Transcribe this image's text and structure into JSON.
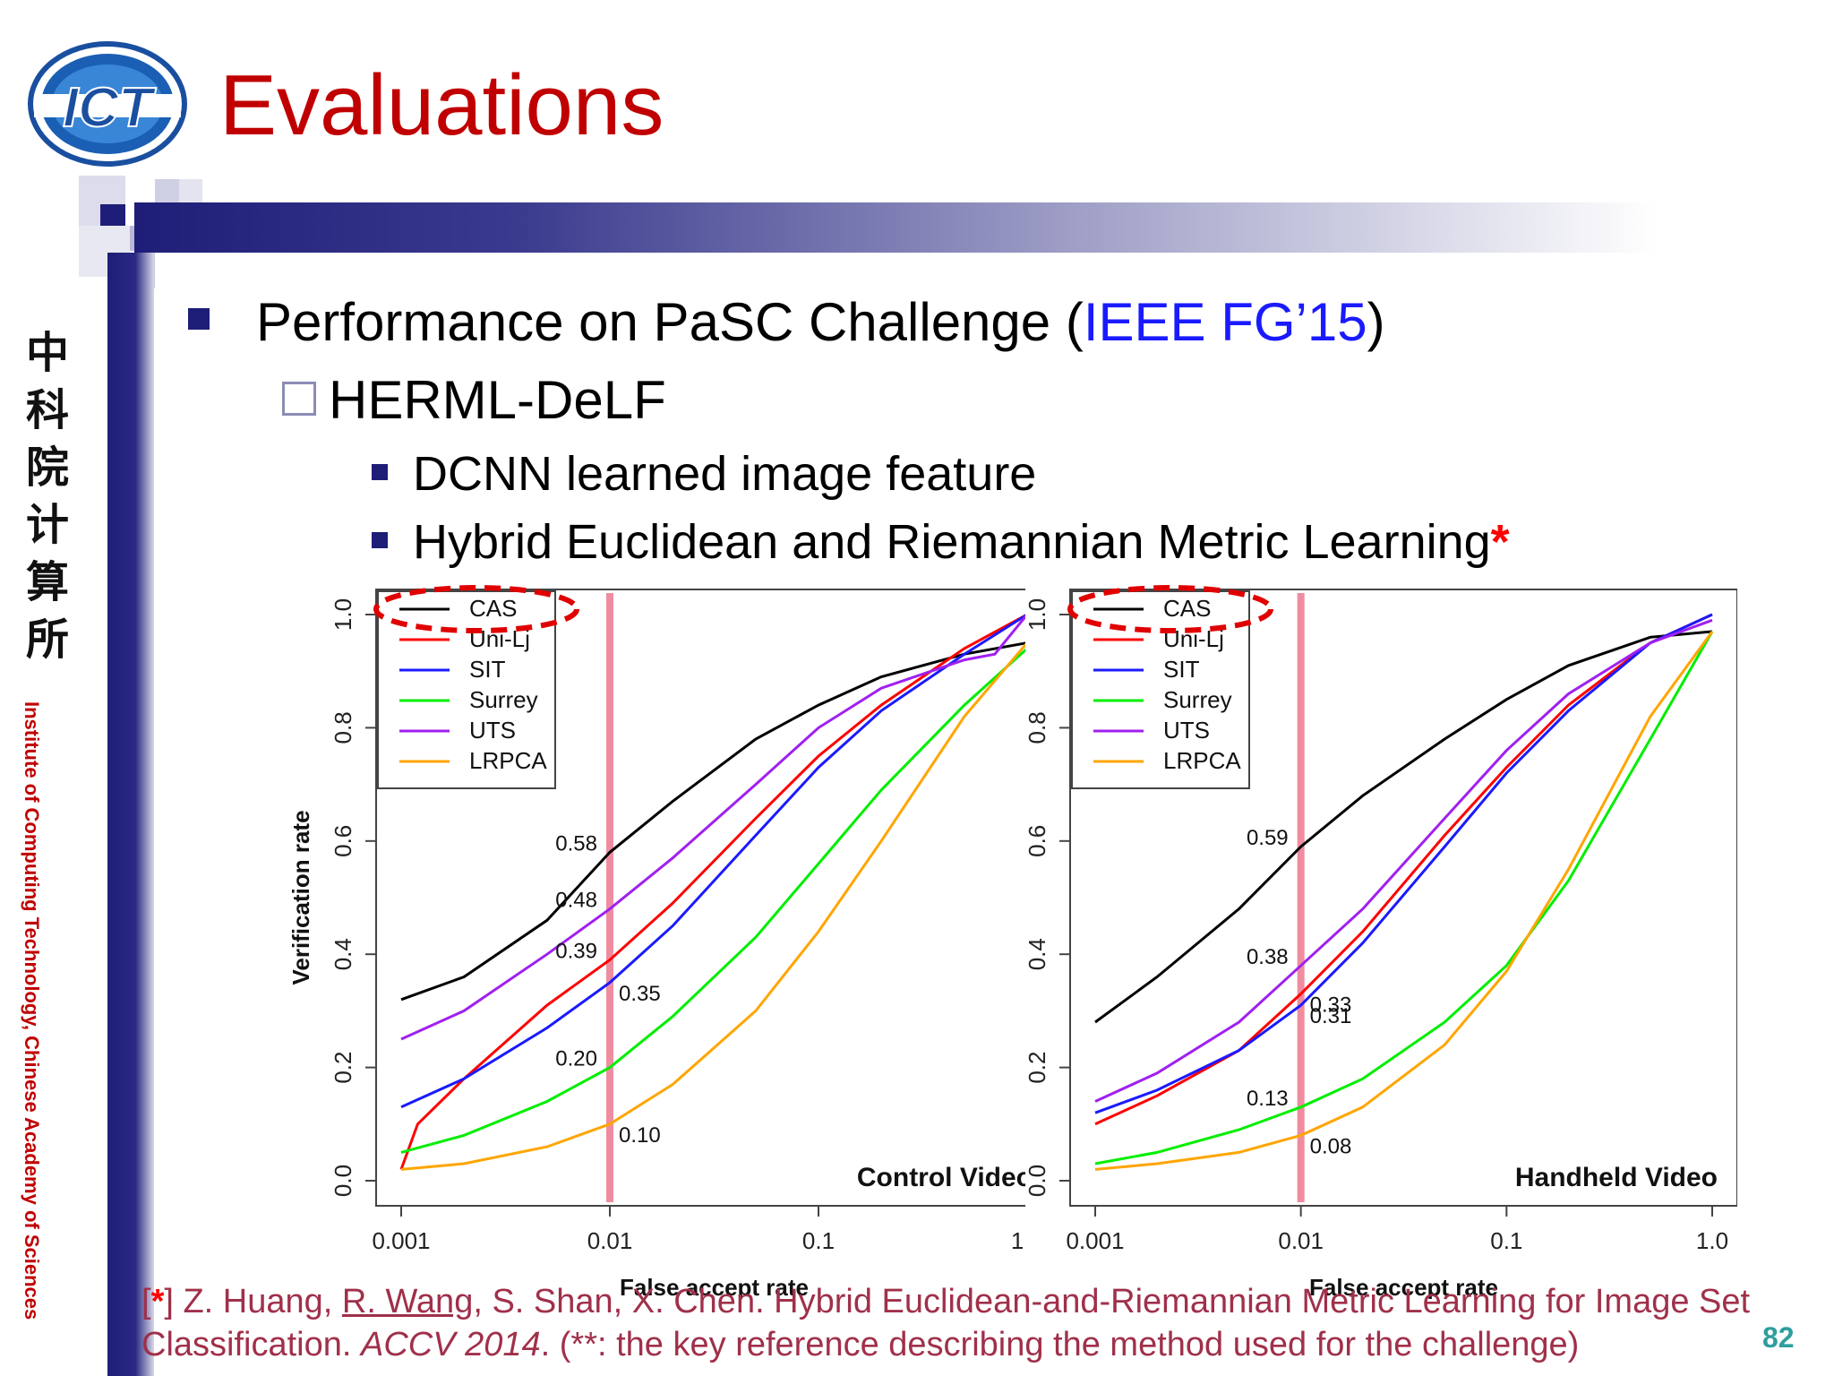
{
  "slide": {
    "title": "Evaluations",
    "logo_text": "ICT",
    "side_text": "Institute of Computing Technology, Chinese Academy of Sciences",
    "side_cjk": "中科院计算所",
    "bullet1_prefix": "Performance on PaSC Challenge (",
    "bullet1_link": "IEEE FG’15",
    "bullet1_suffix": ")",
    "bullet2": "HERML-DeLF",
    "bullet3a": "DCNN learned image feature",
    "bullet3b": "Hybrid Euclidean and Riemannian Metric Learning",
    "bullet3b_star": "*",
    "footer": {
      "star": "*",
      "a": "] Z. Huang, ",
      "author_u": "R. Wang",
      "b": ", S. Shan, X. Chen. Hybrid Euclidean-and-Riemannian Metric Learning for Image Set Classification. ",
      "venue": "ACCV 2014",
      "c": ". (**: the key reference describing the method used for the challenge)"
    },
    "page_number": "82",
    "colors": {
      "title": "#c00000",
      "link": "#1a1aff",
      "footer": "#a0304a",
      "page": "#2e9e9e"
    }
  },
  "chart_data": [
    {
      "type": "line",
      "title": "Control Video",
      "xlabel": "False accept rate",
      "ylabel": "Verification rate",
      "xscale": "log",
      "xlim": [
        0.001,
        1.0
      ],
      "ylim": [
        0.0,
        1.0
      ],
      "xticks": [
        "0.001",
        "0.01",
        "0.1",
        "1.0"
      ],
      "yticks": [
        "0.0",
        "0.2",
        "0.4",
        "0.6",
        "0.8",
        "1.0"
      ],
      "legend_position": "top-left",
      "reference_line_x": 0.01,
      "series": [
        {
          "name": "CAS",
          "color": "#000000",
          "x": [
            0.001,
            0.002,
            0.005,
            0.01,
            0.02,
            0.05,
            0.1,
            0.2,
            0.5,
            1.0
          ],
          "y": [
            0.32,
            0.36,
            0.46,
            0.58,
            0.67,
            0.78,
            0.84,
            0.89,
            0.93,
            0.95
          ]
        },
        {
          "name": "Uni-Lj",
          "color": "#ff0000",
          "x": [
            0.001,
            0.0012,
            0.002,
            0.005,
            0.01,
            0.02,
            0.05,
            0.1,
            0.2,
            0.5,
            1.0
          ],
          "y": [
            0.02,
            0.1,
            0.18,
            0.31,
            0.39,
            0.49,
            0.64,
            0.75,
            0.84,
            0.94,
            1.0
          ]
        },
        {
          "name": "SIT",
          "color": "#1a1aff",
          "x": [
            0.001,
            0.002,
            0.005,
            0.01,
            0.02,
            0.05,
            0.1,
            0.2,
            0.5,
            1.0
          ],
          "y": [
            0.13,
            0.18,
            0.27,
            0.35,
            0.45,
            0.61,
            0.73,
            0.83,
            0.93,
            1.0
          ]
        },
        {
          "name": "Surrey",
          "color": "#00ee00",
          "x": [
            0.001,
            0.002,
            0.005,
            0.01,
            0.02,
            0.05,
            0.1,
            0.2,
            0.5,
            1.0
          ],
          "y": [
            0.05,
            0.08,
            0.14,
            0.2,
            0.29,
            0.43,
            0.56,
            0.69,
            0.84,
            0.94
          ]
        },
        {
          "name": "UTS",
          "color": "#a020f0",
          "x": [
            0.001,
            0.002,
            0.005,
            0.01,
            0.02,
            0.05,
            0.1,
            0.2,
            0.5,
            0.7,
            1.0
          ],
          "y": [
            0.25,
            0.3,
            0.4,
            0.48,
            0.57,
            0.7,
            0.8,
            0.87,
            0.92,
            0.93,
            1.0
          ]
        },
        {
          "name": "LRPCA",
          "color": "#ffa500",
          "x": [
            0.001,
            0.002,
            0.005,
            0.01,
            0.02,
            0.05,
            0.1,
            0.2,
            0.5,
            1.0
          ],
          "y": [
            0.02,
            0.03,
            0.06,
            0.1,
            0.17,
            0.3,
            0.44,
            0.6,
            0.82,
            0.95
          ]
        }
      ],
      "annotations": [
        {
          "text": "0.58",
          "x": 0.01,
          "y": 0.58,
          "side": "left"
        },
        {
          "text": "0.48",
          "x": 0.01,
          "y": 0.48,
          "side": "left"
        },
        {
          "text": "0.39",
          "x": 0.01,
          "y": 0.39,
          "side": "left"
        },
        {
          "text": "0.35",
          "x": 0.01,
          "y": 0.35,
          "side": "right"
        },
        {
          "text": "0.20",
          "x": 0.01,
          "y": 0.2,
          "side": "left"
        },
        {
          "text": "0.10",
          "x": 0.01,
          "y": 0.1,
          "side": "right"
        }
      ]
    },
    {
      "type": "line",
      "title": "Handheld Video",
      "xlabel": "False accept rate",
      "ylabel": "",
      "xscale": "log",
      "xlim": [
        0.001,
        1.0
      ],
      "ylim": [
        0.0,
        1.0
      ],
      "xticks": [
        "0.001",
        "0.01",
        "0.1",
        "1.0"
      ],
      "yticks": [
        "0.0",
        "0.2",
        "0.4",
        "0.6",
        "0.8",
        "1.0"
      ],
      "legend_position": "top-left",
      "reference_line_x": 0.01,
      "series": [
        {
          "name": "CAS",
          "color": "#000000",
          "x": [
            0.001,
            0.002,
            0.005,
            0.01,
            0.02,
            0.05,
            0.1,
            0.2,
            0.5,
            1.0
          ],
          "y": [
            0.28,
            0.36,
            0.48,
            0.59,
            0.68,
            0.78,
            0.85,
            0.91,
            0.96,
            0.97
          ]
        },
        {
          "name": "Uni-Lj",
          "color": "#ff0000",
          "x": [
            0.001,
            0.002,
            0.005,
            0.01,
            0.02,
            0.05,
            0.1,
            0.2,
            0.5,
            1.0
          ],
          "y": [
            0.1,
            0.15,
            0.23,
            0.33,
            0.44,
            0.61,
            0.73,
            0.84,
            0.95,
            1.0
          ]
        },
        {
          "name": "SIT",
          "color": "#1a1aff",
          "x": [
            0.001,
            0.002,
            0.005,
            0.01,
            0.02,
            0.05,
            0.1,
            0.2,
            0.5,
            1.0
          ],
          "y": [
            0.12,
            0.16,
            0.23,
            0.31,
            0.42,
            0.59,
            0.72,
            0.83,
            0.95,
            1.0
          ]
        },
        {
          "name": "Surrey",
          "color": "#00ee00",
          "x": [
            0.001,
            0.002,
            0.005,
            0.01,
            0.02,
            0.05,
            0.1,
            0.2,
            0.5,
            1.0
          ],
          "y": [
            0.03,
            0.05,
            0.09,
            0.13,
            0.18,
            0.28,
            0.38,
            0.53,
            0.78,
            0.97
          ]
        },
        {
          "name": "UTS",
          "color": "#a020f0",
          "x": [
            0.001,
            0.002,
            0.005,
            0.01,
            0.02,
            0.05,
            0.1,
            0.2,
            0.5,
            1.0
          ],
          "y": [
            0.14,
            0.19,
            0.28,
            0.38,
            0.48,
            0.64,
            0.76,
            0.86,
            0.95,
            0.99
          ]
        },
        {
          "name": "LRPCA",
          "color": "#ffa500",
          "x": [
            0.001,
            0.002,
            0.005,
            0.01,
            0.02,
            0.05,
            0.1,
            0.2,
            0.5,
            1.0
          ],
          "y": [
            0.02,
            0.03,
            0.05,
            0.08,
            0.13,
            0.24,
            0.37,
            0.55,
            0.82,
            0.97
          ]
        }
      ],
      "annotations": [
        {
          "text": "0.59",
          "x": 0.01,
          "y": 0.59,
          "side": "left"
        },
        {
          "text": "0.38",
          "x": 0.01,
          "y": 0.38,
          "side": "left"
        },
        {
          "text": "0.33",
          "x": 0.01,
          "y": 0.33,
          "side": "right"
        },
        {
          "text": "0.31",
          "x": 0.01,
          "y": 0.31,
          "side": "right"
        },
        {
          "text": "0.13",
          "x": 0.01,
          "y": 0.13,
          "side": "left"
        },
        {
          "text": "0.08",
          "x": 0.01,
          "y": 0.08,
          "side": "right"
        }
      ]
    }
  ]
}
